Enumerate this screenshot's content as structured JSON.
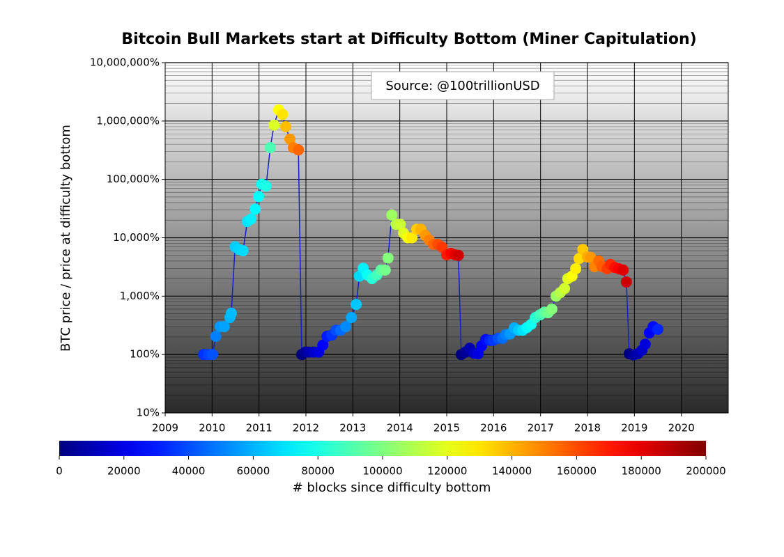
{
  "chart_data": {
    "type": "scatter",
    "title": "Bitcoin Bull Markets start at Difficulty Bottom (Miner Capitulation)",
    "ylabel": "BTC price / price at difficulty bottom",
    "annotation": "Source: @100trillionUSD",
    "log_y": true,
    "grid": true,
    "xlim": [
      2009,
      2021
    ],
    "xticks": [
      2009,
      2010,
      2011,
      2012,
      2013,
      2014,
      2015,
      2016,
      2017,
      2018,
      2019,
      2020
    ],
    "ylim": [
      10,
      10000000
    ],
    "yticks": [
      {
        "value": 10,
        "label": "10%"
      },
      {
        "value": 100,
        "label": "100%"
      },
      {
        "value": 1000,
        "label": "1,000%"
      },
      {
        "value": 10000,
        "label": "10,000%"
      },
      {
        "value": 100000,
        "label": "100,000%"
      },
      {
        "value": 1000000,
        "label": "1,000,000%"
      },
      {
        "value": 10000000,
        "label": "10,000,000%"
      }
    ],
    "line_color": "#1020c8",
    "colormap": "jet",
    "colorbar_label": "# blocks since difficulty bottom",
    "clim": [
      0,
      200000
    ],
    "cticks": [
      0,
      20000,
      40000,
      60000,
      80000,
      100000,
      120000,
      140000,
      160000,
      180000,
      200000
    ],
    "x": [
      2009.82,
      2009.92,
      2010.01,
      2010.08,
      2010.17,
      2010.26,
      2010.38,
      2010.41,
      2010.49,
      2010.57,
      2010.66,
      2010.75,
      2010.83,
      2010.92,
      2010.99,
      2011.06,
      2011.15,
      2011.24,
      2011.32,
      2011.42,
      2011.5,
      2011.57,
      2011.66,
      2011.73,
      2011.84,
      2011.91,
      2011.99,
      2012.06,
      2012.16,
      2012.27,
      2012.36,
      2012.45,
      2012.55,
      2012.64,
      2012.74,
      2012.85,
      2012.97,
      2013.07,
      2013.14,
      2013.22,
      2013.31,
      2013.41,
      2013.51,
      2013.6,
      2013.69,
      2013.75,
      2013.83,
      2013.92,
      2014.01,
      2014.08,
      2014.17,
      2014.26,
      2014.36,
      2014.45,
      2014.54,
      2014.63,
      2014.72,
      2014.81,
      2014.9,
      2015.0,
      2015.09,
      2015.18,
      2015.25,
      2015.31,
      2015.4,
      2015.49,
      2015.58,
      2015.67,
      2015.74,
      2015.83,
      2015.92,
      2015.99,
      2016.1,
      2016.19,
      2016.26,
      2016.35,
      2016.44,
      2016.53,
      2016.62,
      2016.71,
      2016.8,
      2016.89,
      2016.99,
      2017.08,
      2017.16,
      2017.24,
      2017.33,
      2017.42,
      2017.51,
      2017.58,
      2017.67,
      2017.75,
      2017.82,
      2017.9,
      2018.0,
      2018.07,
      2018.15,
      2018.24,
      2018.31,
      2018.42,
      2018.49,
      2018.58,
      2018.67,
      2018.76,
      2018.83,
      2018.89,
      2018.98,
      2019.07,
      2019.16,
      2019.23,
      2019.32,
      2019.4,
      2019.5
    ],
    "values": [
      100,
      100,
      100,
      205,
      300,
      300,
      430,
      510,
      7000,
      6300,
      6000,
      19000,
      21000,
      31000,
      51000,
      83000,
      77000,
      350000,
      850000,
      1550000,
      1300000,
      800000,
      490000,
      350000,
      320000,
      100,
      110,
      110,
      110,
      110,
      145,
      205,
      215,
      260,
      260,
      300,
      430,
      720,
      2200,
      3000,
      2300,
      2000,
      2300,
      2800,
      2800,
      4500,
      24500,
      17000,
      17000,
      12000,
      10000,
      10000,
      14000,
      14000,
      11000,
      9100,
      7700,
      7700,
      6900,
      5100,
      5400,
      5100,
      5000,
      100,
      110,
      128,
      105,
      103,
      140,
      180,
      175,
      175,
      190,
      190,
      220,
      225,
      285,
      260,
      260,
      290,
      330,
      430,
      480,
      530,
      520,
      600,
      1000,
      1150,
      1350,
      2000,
      2200,
      2950,
      4400,
      6300,
      4700,
      4600,
      3200,
      4000,
      3200,
      2950,
      3500,
      3100,
      2950,
      2800,
      1750,
      103,
      98,
      103,
      118,
      150,
      235,
      300,
      270
    ],
    "color_values": [
      35000,
      38000,
      41000,
      50000,
      55000,
      57000,
      60000,
      62000,
      65000,
      67000,
      68000,
      70000,
      72000,
      74000,
      76000,
      78000,
      80000,
      90000,
      118000,
      125000,
      130000,
      138000,
      145000,
      150000,
      155000,
      0,
      4000,
      9000,
      14000,
      19000,
      25000,
      30000,
      35000,
      40000,
      46000,
      52000,
      58000,
      64000,
      68000,
      72000,
      77000,
      83000,
      88000,
      93000,
      98000,
      101000,
      106000,
      111000,
      115000,
      119000,
      124000,
      129000,
      135000,
      140000,
      145000,
      150000,
      155000,
      160000,
      164000,
      170000,
      175000,
      180000,
      184000,
      0,
      5000,
      9000,
      14000,
      19000,
      23000,
      27000,
      32000,
      36000,
      41000,
      46000,
      50000,
      55000,
      59000,
      64000,
      69000,
      74000,
      78000,
      83000,
      88000,
      93000,
      97000,
      101000,
      106000,
      111000,
      116000,
      119000,
      124000,
      128000,
      132000,
      136000,
      141000,
      145000,
      149000,
      154000,
      157000,
      163000,
      167000,
      172000,
      176000,
      181000,
      185000,
      0,
      5000,
      9000,
      14000,
      18000,
      23000,
      27000,
      32000
    ]
  }
}
